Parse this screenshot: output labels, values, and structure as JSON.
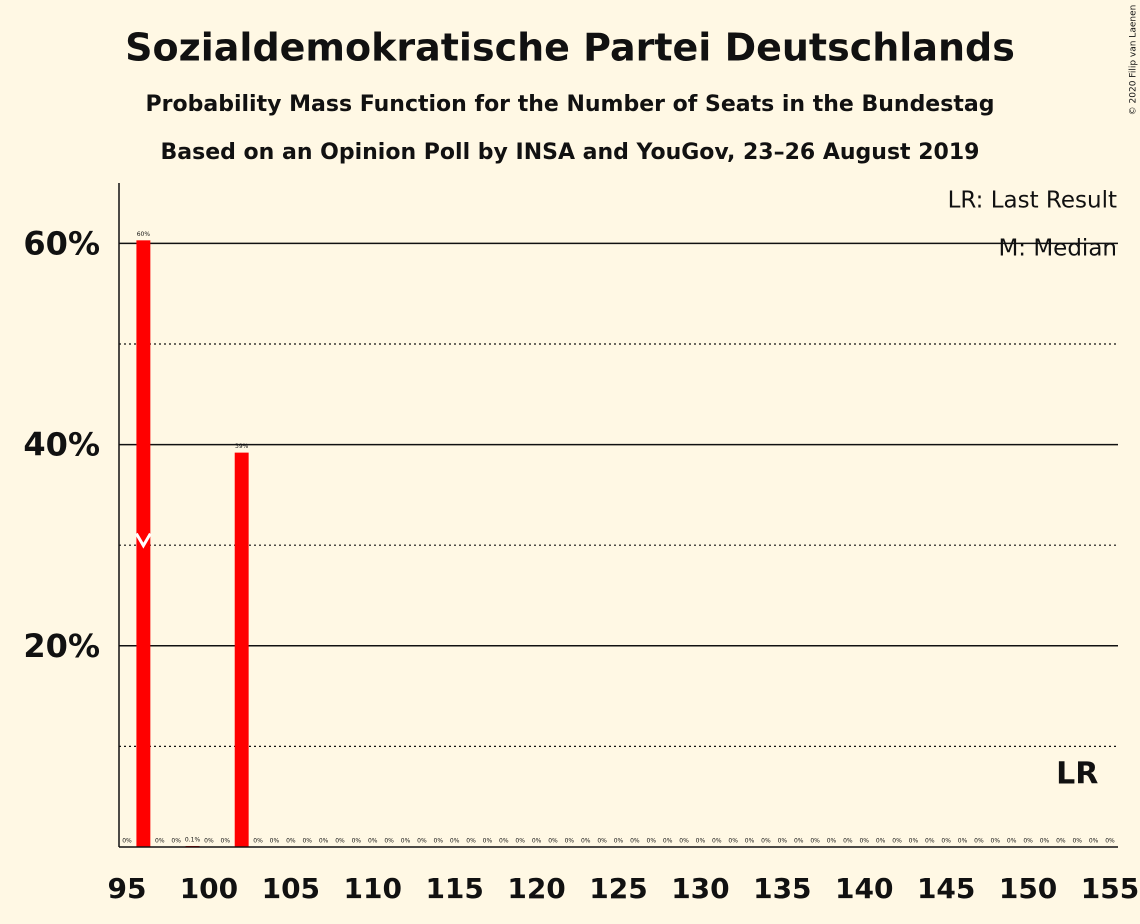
{
  "chart_data": {
    "type": "bar",
    "title": "Sozialdemokratische Partei Deutschlands",
    "subtitle": "Probability Mass Function for the Number of Seats in the Bundestag",
    "subtitle2": "Based on an Opinion Poll by INSA and YouGov, 23–26 August 2019",
    "legend": [
      "LR: Last Result",
      "M: Median"
    ],
    "credit": "© 2020 Filip van Laenen",
    "color": "#ff0000",
    "x": [
      95,
      96,
      97,
      98,
      99,
      100,
      101,
      102,
      103,
      104,
      105,
      106,
      107,
      108,
      109,
      110,
      111,
      112,
      113,
      114,
      115,
      116,
      117,
      118,
      119,
      120,
      121,
      122,
      123,
      124,
      125,
      126,
      127,
      128,
      129,
      130,
      131,
      132,
      133,
      134,
      135,
      136,
      137,
      138,
      139,
      140,
      141,
      142,
      143,
      144,
      145,
      146,
      147,
      148,
      149,
      150,
      151,
      152,
      153,
      154,
      155
    ],
    "values": [
      0,
      60.3,
      0,
      0,
      0.1,
      0,
      0,
      39.2,
      0,
      0,
      0,
      0,
      0,
      0,
      0,
      0,
      0,
      0,
      0,
      0,
      0,
      0,
      0,
      0,
      0,
      0,
      0,
      0,
      0,
      0,
      0,
      0,
      0,
      0,
      0,
      0,
      0,
      0,
      0,
      0,
      0,
      0,
      0,
      0,
      0,
      0,
      0,
      0,
      0,
      0,
      0,
      0,
      0,
      0,
      0,
      0,
      0,
      0,
      0,
      0,
      0
    ],
    "value_labels": [
      "0%",
      "60%",
      "0%",
      "0%",
      "0.1%",
      "0%",
      "0%",
      "39%",
      "0%",
      "0%",
      "0%",
      "0%",
      "0%",
      "0%",
      "0%",
      "0%",
      "0%",
      "0%",
      "0%",
      "0%",
      "0%",
      "0%",
      "0%",
      "0%",
      "0%",
      "0%",
      "0%",
      "0%",
      "0%",
      "0%",
      "0%",
      "0%",
      "0%",
      "0%",
      "0%",
      "0%",
      "0%",
      "0%",
      "0%",
      "0%",
      "0%",
      "0%",
      "0%",
      "0%",
      "0%",
      "0%",
      "0%",
      "0%",
      "0%",
      "0%",
      "0%",
      "0%",
      "0%",
      "0%",
      "0%",
      "0%",
      "0%",
      "0%",
      "0%",
      "0%",
      "0%"
    ],
    "xlim": [
      95,
      155
    ],
    "xticks": [
      95,
      100,
      105,
      110,
      115,
      120,
      125,
      130,
      135,
      140,
      145,
      150,
      155
    ],
    "ylim": [
      0,
      66
    ],
    "yticks": [
      {
        "value": 20,
        "label": "20%"
      },
      {
        "value": 40,
        "label": "40%"
      },
      {
        "value": 60,
        "label": "60%"
      }
    ],
    "minor_yticks": [
      10,
      30,
      50
    ],
    "median": 96,
    "last_result": {
      "label": "LR",
      "x": 153
    }
  }
}
